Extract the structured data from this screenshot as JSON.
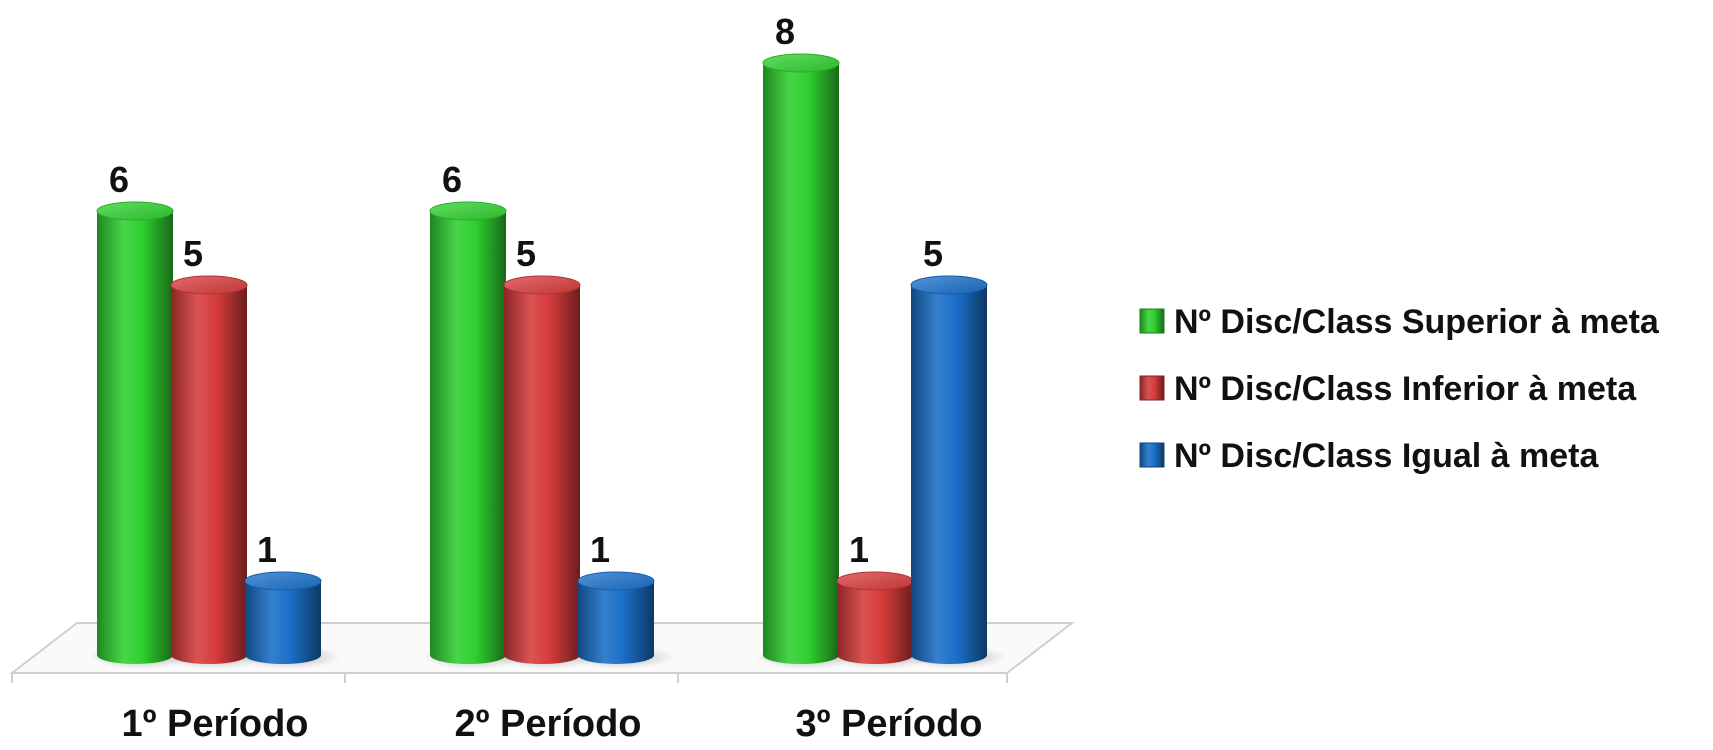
{
  "chart_data": {
    "type": "bar",
    "style": "3d-cylinder",
    "categories": [
      "1º Período",
      "2º Período",
      "3º Período"
    ],
    "series": [
      {
        "name": "Nº Disc/Class Superior à meta",
        "values": [
          6,
          6,
          8
        ],
        "color": "#2fcf2f"
      },
      {
        "name": "Nº Disc/Class Inferior à meta",
        "values": [
          5,
          5,
          1
        ],
        "color": "#d63b3b"
      },
      {
        "name": "Nº Disc/Class Igual à meta",
        "values": [
          1,
          1,
          5
        ],
        "color": "#1a6fc8"
      }
    ],
    "data_labels": true,
    "grid": false,
    "legend_position": "right",
    "ylim": [
      0,
      8
    ]
  }
}
